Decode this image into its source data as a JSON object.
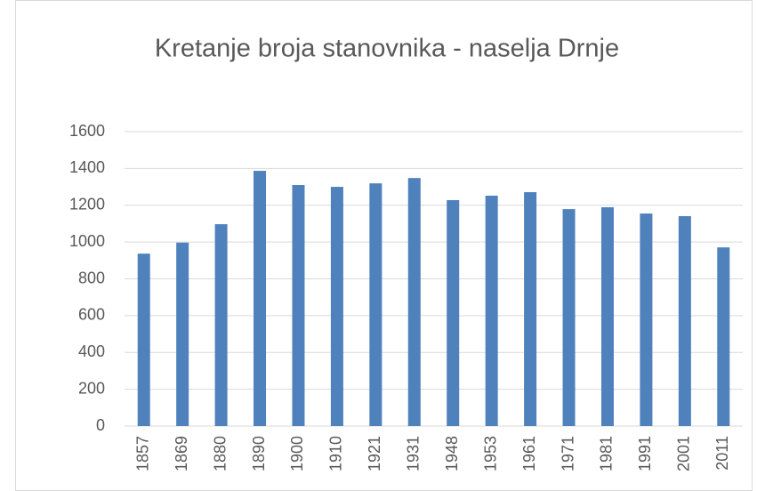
{
  "chart_data": {
    "type": "bar",
    "title": "Kretanje broja stanovnika - naselja Drnje",
    "categories": [
      "1857",
      "1869",
      "1880",
      "1890",
      "1900",
      "1910",
      "1921",
      "1931",
      "1948",
      "1953",
      "1961",
      "1971",
      "1981",
      "1991",
      "2001",
      "2011"
    ],
    "values": [
      937,
      997,
      1097,
      1387,
      1310,
      1300,
      1319,
      1348,
      1228,
      1252,
      1271,
      1179,
      1189,
      1155,
      1141,
      971
    ],
    "color": "#4f81bd",
    "ylim": [
      0,
      1600
    ],
    "yticks": [
      0,
      200,
      400,
      600,
      800,
      1000,
      1200,
      1400,
      1600
    ],
    "grid": true
  }
}
